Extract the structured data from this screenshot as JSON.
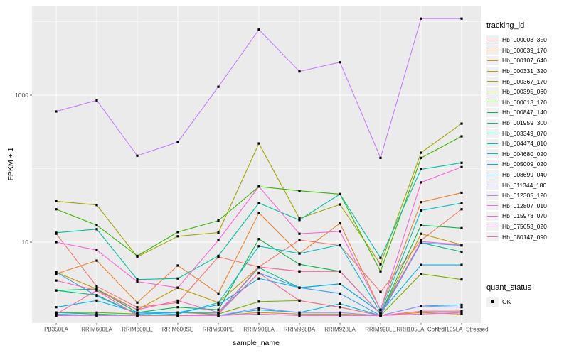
{
  "figure": {
    "background": "#FFFFFF",
    "panel_background": "#EBEBEB",
    "grid_color": "#FFFFFF",
    "axis_text_color": "#4D4D4D",
    "tick_color": "#333333",
    "point_color": "#000000",
    "legend_key_background": "#F0F0F0"
  },
  "axes": {
    "x_title": "sample_name",
    "y_title": "FPKM + 1"
  },
  "legend": {
    "color_title": "tracking_id",
    "shape_title": "quant_status",
    "shape_label": "OK"
  },
  "chart_data": {
    "type": "line",
    "title": "",
    "xlabel": "sample_name",
    "ylabel": "FPKM + 1",
    "y_scale": "log10",
    "grid": true,
    "legend_position": "right",
    "point_marker": "black-square",
    "y_breaks": [
      10,
      1000
    ],
    "y_tick_labels": [
      "10",
      "1000"
    ],
    "y_minor_breaks": [
      100,
      10000
    ],
    "ylim": [
      0.75,
      16000
    ],
    "categories": [
      "PB350LA",
      "RRIM600LA",
      "RRIM600LE",
      "RRIM600SE",
      "RRIM600PE",
      "RRIM901LA",
      "RRIM928BA",
      "RRIM928LA",
      "RRIM928LE",
      "RRII105LA_Control",
      "RRII105LA_Stressed"
    ],
    "series": [
      {
        "name": "Hb_000003_350",
        "color": "#F8766D",
        "values": [
          13,
          2.5,
          1.3,
          1.5,
          6.3,
          4.6,
          10.7,
          9,
          2.1,
          10.6,
          28
        ]
      },
      {
        "name": "Hb_000039_170",
        "color": "#EA8331",
        "values": [
          3.7,
          5.6,
          1.5,
          4.8,
          2.0,
          25,
          7,
          18,
          1.2,
          35,
          47
        ]
      },
      {
        "name": "Hb_000107_640",
        "color": "#D89000",
        "values": [
          1.1,
          1.05,
          1.0,
          1.0,
          1.0,
          1.1,
          1.05,
          1.05,
          1.0,
          1.1,
          1.05
        ]
      },
      {
        "name": "Hb_000331_320",
        "color": "#C09B00",
        "values": [
          3.9,
          2.3,
          1.2,
          2.4,
          1.5,
          4.6,
          4.0,
          4.0,
          1.05,
          13,
          9.2
        ]
      },
      {
        "name": "Hb_000367_170",
        "color": "#A3A500",
        "values": [
          36,
          32,
          6.3,
          12,
          13.5,
          220,
          21,
          32.5,
          5.0,
          165,
          410
        ]
      },
      {
        "name": "Hb_000395_060",
        "color": "#7CAE00",
        "values": [
          1.1,
          1.1,
          1.05,
          1.1,
          1.05,
          1.55,
          1.6,
          1.3,
          1.0,
          3.7,
          3.1
        ]
      },
      {
        "name": "Hb_000613_170",
        "color": "#39B600",
        "values": [
          28,
          17,
          6.5,
          13.7,
          19.6,
          57,
          50,
          45,
          4.0,
          140,
          275
        ]
      },
      {
        "name": "Hb_000847_140",
        "color": "#00BB4E",
        "values": [
          2.2,
          2.3,
          1.1,
          1.3,
          1.2,
          11,
          5.0,
          4.0,
          1.05,
          17,
          15.5
        ]
      },
      {
        "name": "Hb_001959_300",
        "color": "#00BF7D",
        "values": [
          2.2,
          1.9,
          1.05,
          1.1,
          1.1,
          4.5,
          2.4,
          2.7,
          1.1,
          9.8,
          7.4
        ]
      },
      {
        "name": "Hb_003349_070",
        "color": "#00C1A3",
        "values": [
          13.4,
          15,
          3.1,
          3.2,
          6.5,
          34,
          20,
          45,
          6.1,
          98,
          120
        ]
      },
      {
        "name": "Hb_004474_010",
        "color": "#00BFC4",
        "values": [
          1.1,
          1.05,
          1.0,
          1.05,
          1.5,
          8.8,
          7.0,
          9.2,
          1.1,
          27,
          34
        ]
      },
      {
        "name": "Hb_004680_020",
        "color": "#00BAE0",
        "values": [
          1.05,
          1.0,
          1.0,
          1.0,
          1.0,
          1.2,
          1.1,
          1.45,
          1.0,
          1.35,
          1.4
        ]
      },
      {
        "name": "Hb_005009_020",
        "color": "#00B0F6",
        "values": [
          1.3,
          1.6,
          1.1,
          1.1,
          1.4,
          3.2,
          2.4,
          2.7,
          1.1,
          4.9,
          4.9
        ]
      },
      {
        "name": "Hb_008699_040",
        "color": "#35A2FF",
        "values": [
          3.9,
          1.85,
          1.05,
          1.1,
          1.1,
          3.8,
          2.4,
          2.0,
          1.0,
          9.8,
          9.0
        ]
      },
      {
        "name": "Hb_011344_180",
        "color": "#9590FF",
        "values": [
          1.05,
          1.0,
          1.0,
          1.0,
          1.0,
          1.27,
          1.1,
          1.1,
          1.0,
          1.35,
          1.3
        ]
      },
      {
        "name": "Hb_012305_120",
        "color": "#C77CFF",
        "values": [
          600,
          850,
          150,
          230,
          1300,
          7800,
          2100,
          2800,
          140,
          11000,
          11000
        ]
      },
      {
        "name": "Hb_012807_010",
        "color": "#E76BF3",
        "values": [
          1.0,
          1.0,
          1.0,
          1.0,
          1.0,
          1.05,
          1.0,
          1.0,
          1.0,
          1.05,
          1.1
        ]
      },
      {
        "name": "Hb_015978_070",
        "color": "#FA62DB",
        "values": [
          10,
          7.8,
          2.9,
          2.4,
          10.6,
          57,
          13,
          14,
          1.2,
          65,
          105
        ]
      },
      {
        "name": "Hb_075653_020",
        "color": "#FF62BC",
        "values": [
          3.0,
          2.2,
          1.2,
          1.6,
          1.1,
          4.6,
          4.0,
          4.0,
          1.05,
          10.2,
          9.2
        ]
      },
      {
        "name": "Hb_080147_090",
        "color": "#FF6A98",
        "values": [
          1.05,
          2.2,
          1.0,
          1.0,
          1.05,
          3.8,
          1.6,
          1.3,
          1.0,
          1.15,
          1.15
        ]
      }
    ],
    "quant_status": {
      "label": "OK",
      "marker": "black-square"
    }
  }
}
